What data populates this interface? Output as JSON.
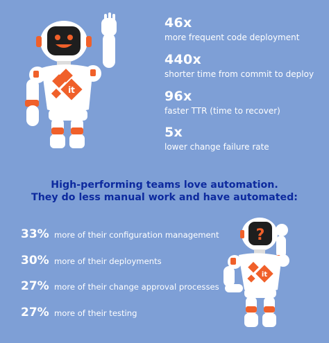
{
  "stats": [
    {
      "value": "46x",
      "description": "more frequent code deployment"
    },
    {
      "value": "440x",
      "description": "shorter time from commit to deploy"
    },
    {
      "value": "96x",
      "description": "faster TTR (time to recover)"
    },
    {
      "value": "5x",
      "description": "lower change failure rate"
    }
  ],
  "headline": {
    "line1": "High-performing teams love automation.",
    "line2": "They do less manual work and have automated:"
  },
  "automated": [
    {
      "percent": "33%",
      "label": "more of their configuration management"
    },
    {
      "percent": "30%",
      "label": "more of their deployments"
    },
    {
      "percent": "27%",
      "label": "more of their change approval processes"
    },
    {
      "percent": "27%",
      "label": "more of their testing"
    }
  ],
  "colors": {
    "background": "#7e9fd6",
    "headline": "#0d2a9e",
    "robot_accent": "#f0602a",
    "robot_body": "#ffffff",
    "robot_face": "#1e1e1e"
  },
  "icons": {
    "robot_waving": "robot-waving-icon",
    "robot_thinking": "robot-thinking-icon"
  }
}
